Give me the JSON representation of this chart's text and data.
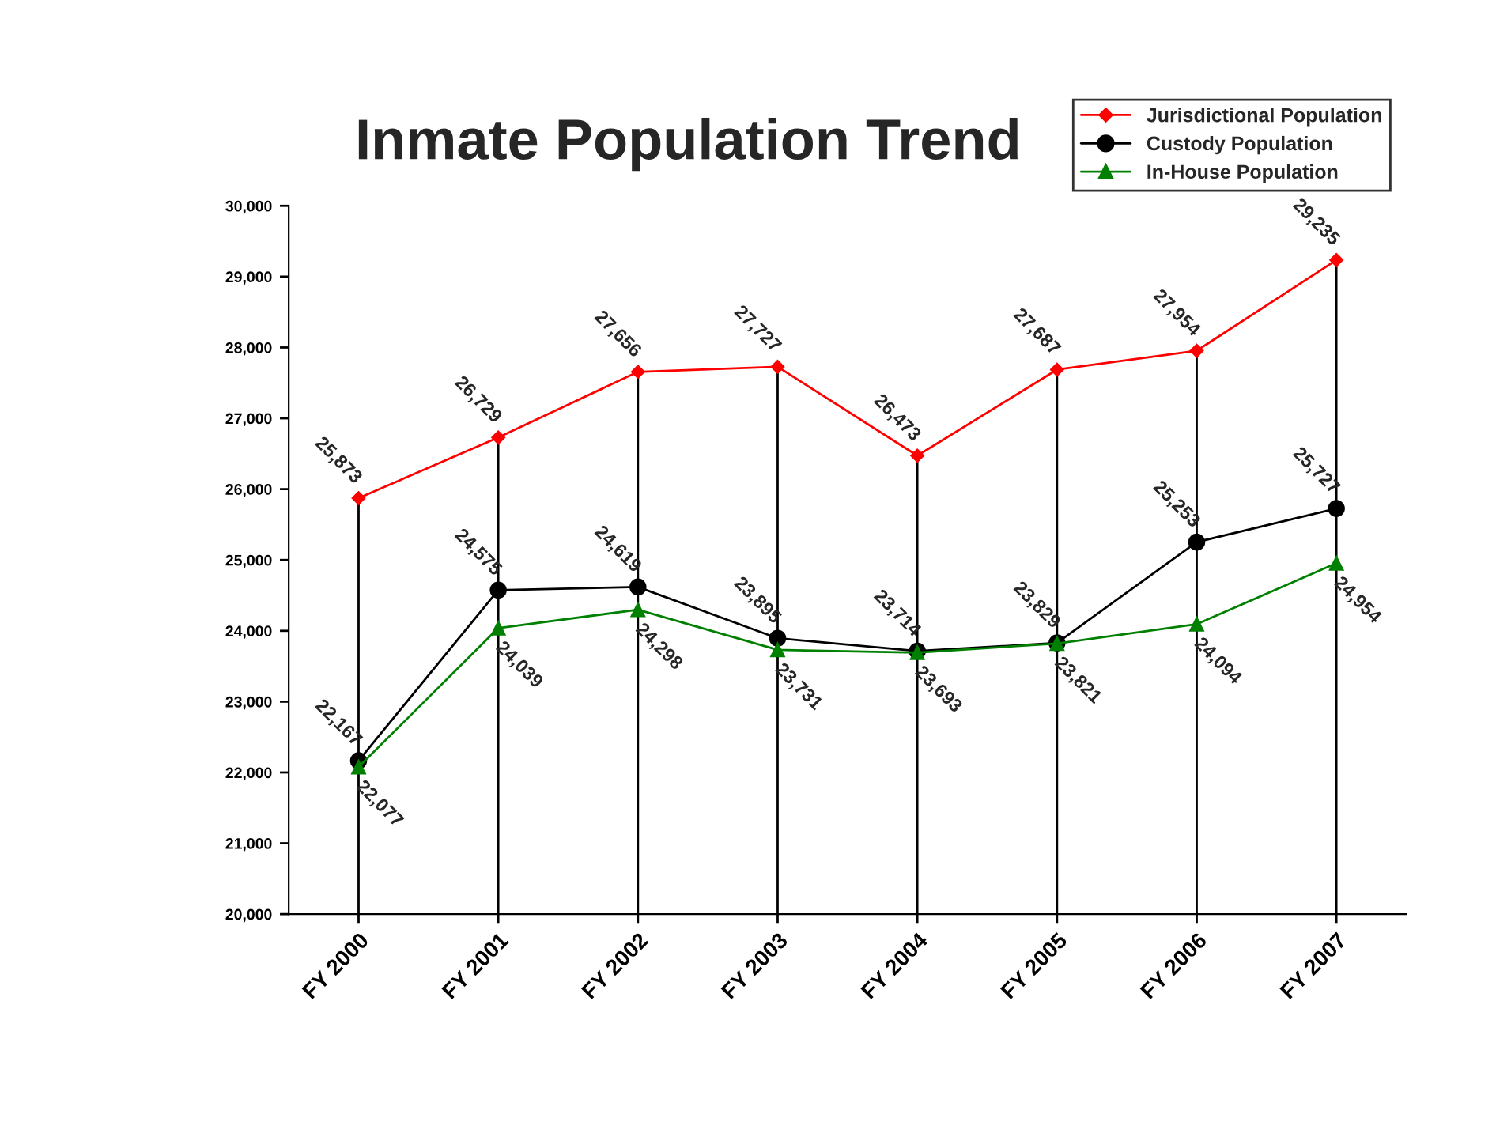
{
  "chart_data": {
    "type": "line",
    "title": "Inmate Population Trend",
    "categories": [
      "FY 2000",
      "FY 2001",
      "FY 2002",
      "FY 2003",
      "FY 2004",
      "FY 2005",
      "FY 2006",
      "FY 2007"
    ],
    "series": [
      {
        "name": "Jurisdictional Population",
        "color": "#ff0000",
        "marker": "diamond",
        "values": [
          25873,
          26729,
          27656,
          27727,
          26473,
          27687,
          27954,
          29235
        ],
        "value_labels": [
          "25,873",
          "26,729",
          "27,656",
          "27,727",
          "26,473",
          "27,687",
          "27,954",
          "29,235"
        ]
      },
      {
        "name": "Custody Population",
        "color": "#000000",
        "marker": "circle",
        "values": [
          22167,
          24575,
          24619,
          23895,
          23714,
          23829,
          25253,
          25727
        ],
        "value_labels": [
          "22,167",
          "24,575",
          "24,619",
          "23,895",
          "23,714",
          "23,829",
          "25,253",
          "25,727"
        ]
      },
      {
        "name": "In-House Population",
        "color": "#008000",
        "marker": "triangle",
        "values": [
          22077,
          24039,
          24298,
          23731,
          23693,
          23821,
          24094,
          24954
        ],
        "value_labels": [
          "22,077",
          "24,039",
          "24,298",
          "23,731",
          "23,693",
          "23,821",
          "24,094",
          "24,954"
        ]
      }
    ],
    "ylim": [
      20000,
      30000
    ],
    "yticks": [
      {
        "value": 20000,
        "label": "20,000"
      },
      {
        "value": 21000,
        "label": "21,000"
      },
      {
        "value": 22000,
        "label": "22,000"
      },
      {
        "value": 23000,
        "label": "23,000"
      },
      {
        "value": 24000,
        "label": "24,000"
      },
      {
        "value": 25000,
        "label": "25,000"
      },
      {
        "value": 26000,
        "label": "26,000"
      },
      {
        "value": 27000,
        "label": "27,000"
      },
      {
        "value": 28000,
        "label": "28,000"
      },
      {
        "value": 29000,
        "label": "29,000"
      },
      {
        "value": 30000,
        "label": "30,000"
      }
    ],
    "grid": "x",
    "legend": "top right"
  }
}
